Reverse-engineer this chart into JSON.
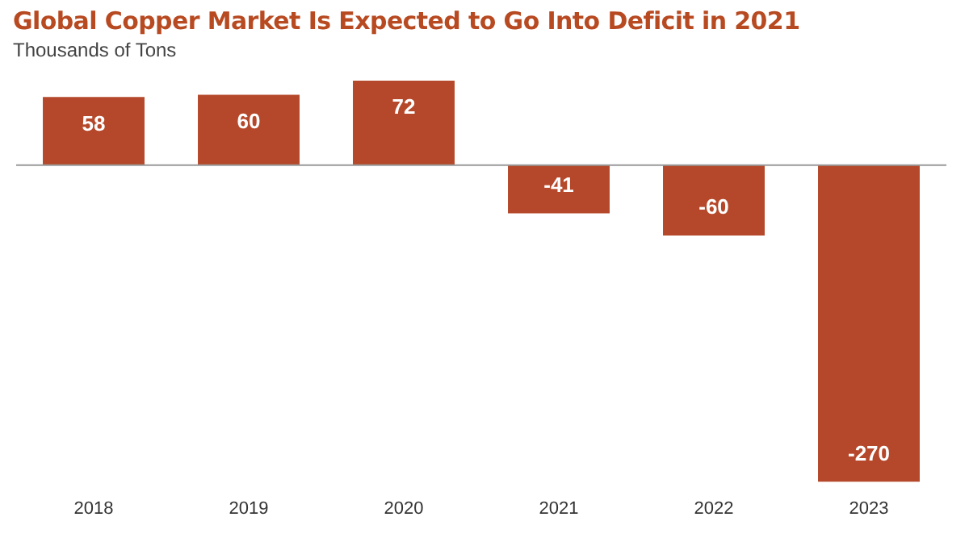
{
  "chart_data": {
    "type": "bar",
    "title": "Global Copper Market Is Expected to Go Into Deficit in 2021",
    "subtitle": "Thousands of Tons",
    "categories": [
      "2018",
      "2019",
      "2020",
      "2021",
      "2022",
      "2023"
    ],
    "values": [
      58,
      60,
      72,
      -41,
      -60,
      -270
    ],
    "color": "#b5482a",
    "data_labels": true,
    "ref_lines": [
      {
        "axis": "y",
        "value": 0,
        "color": "#9a9a9a"
      }
    ],
    "grid": false,
    "legend": false
  }
}
